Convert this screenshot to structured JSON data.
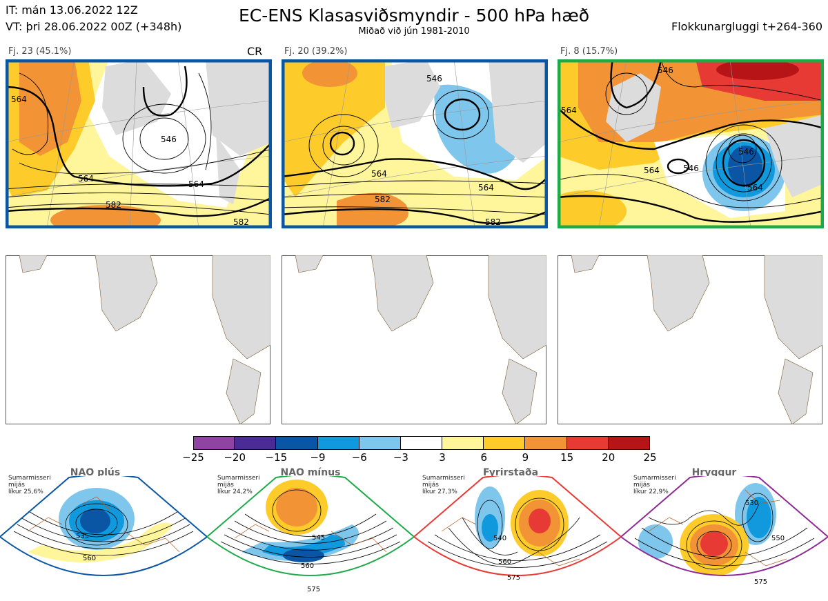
{
  "header": {
    "it_line": "IT: mán 13.06.2022 12Z",
    "vt_line": "VT: þri 28.06.2022 00Z  (+348h)",
    "title": "EC-ENS Klasasviðsmyndir - 500 hPa hæð",
    "subtitle": "Miðað við jún 1981-2010",
    "window": "Flokkunargluggi t+264-360"
  },
  "clusters": [
    {
      "label": "Fj. 23 (45.1%)",
      "border_color": "#0a56a4",
      "extra_label": "CR",
      "contour_labels": [
        "564",
        "546",
        "564",
        "564",
        "582",
        "582"
      ]
    },
    {
      "label": "Fj. 20 (39.2%)",
      "border_color": "#0a56a4",
      "extra_label": "",
      "contour_labels": [
        "546",
        "564",
        "582",
        "564",
        "582"
      ]
    },
    {
      "label": "Fj. 8 (15.7%)",
      "border_color": "#1faa4a",
      "extra_label": "",
      "contour_labels": [
        "546",
        "564",
        "546",
        "564",
        "546",
        "564"
      ]
    }
  ],
  "colorbar": {
    "colors": [
      "#8e44a0",
      "#4a2c94",
      "#0a56a4",
      "#1199dd",
      "#7fc6ec",
      "#ffffff",
      "#fff59a",
      "#fdcc2a",
      "#f29336",
      "#e83a34",
      "#b71418"
    ],
    "ticks": [
      "−25",
      "−20",
      "−15",
      "−9",
      "−6",
      "−3",
      "3",
      "6",
      "9",
      "15",
      "20",
      "25"
    ]
  },
  "regimes": [
    {
      "name": "NAO plús",
      "desc_lines": [
        "Sumarmisseri",
        "mijás",
        "líkur 25,6%"
      ],
      "border_color": "#0a56a4",
      "dot_color": "#0a56a4",
      "contour_labels": [
        "535",
        "560"
      ]
    },
    {
      "name": "NAO mínus",
      "desc_lines": [
        "Sumarmisseri",
        "mijás",
        "líkur 24,2%"
      ],
      "border_color": "#1faa4a",
      "dot_color": "#1faa4a",
      "contour_labels": [
        "545",
        "560",
        "575"
      ]
    },
    {
      "name": "Fyrirstaða",
      "desc_lines": [
        "Sumarmisseri",
        "mijás",
        "líkur 27,3%"
      ],
      "border_color": "#e83a34",
      "dot_color": "#e83a34",
      "contour_labels": [
        "540",
        "560",
        "575"
      ]
    },
    {
      "name": "Hryggur",
      "desc_lines": [
        "Sumarmisseri",
        "mijás",
        "líkur 22,9%"
      ],
      "border_color": "#8e2a94",
      "dot_color": "#ee82ee",
      "contour_labels": [
        "530",
        "550",
        "575"
      ]
    }
  ]
}
